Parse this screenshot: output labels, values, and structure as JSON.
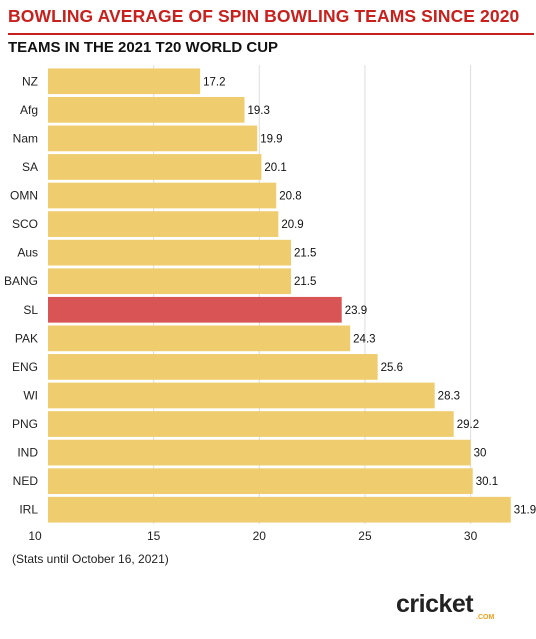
{
  "header": {
    "title": "BOWLING AVERAGE OF SPIN BOWLING TEAMS SINCE 2020",
    "subtitle": "TEAMS IN THE 2021 T20 WORLD CUP"
  },
  "footer": {
    "note": "(Stats until October 16, 2021)",
    "logo_text": "cricket",
    "logo_suffix": ".COM"
  },
  "colors": {
    "bar": "#efcc6e",
    "highlight": "#d95455",
    "grid": "#dddddd",
    "text": "#222222"
  },
  "chart_data": {
    "type": "bar",
    "orientation": "horizontal",
    "title": "BOWLING AVERAGE OF SPIN BOWLING TEAMS SINCE 2020",
    "subtitle": "TEAMS IN THE 2021 T20 WORLD CUP",
    "xlabel": "",
    "ylabel": "",
    "xlim": [
      10,
      33
    ],
    "xticks": [
      10,
      15,
      20,
      25,
      30
    ],
    "grid": true,
    "highlight": "SL",
    "categories": [
      "NZ",
      "Afg",
      "Nam",
      "SA",
      "OMN",
      "SCO",
      "Aus",
      "BANG",
      "SL",
      "PAK",
      "ENG",
      "WI",
      "PNG",
      "IND",
      "NED",
      "IRL"
    ],
    "values": [
      17.2,
      19.3,
      19.9,
      20.1,
      20.8,
      20.9,
      21.5,
      21.5,
      23.9,
      24.3,
      25.6,
      28.3,
      29.2,
      30,
      30.1,
      31.9
    ]
  }
}
